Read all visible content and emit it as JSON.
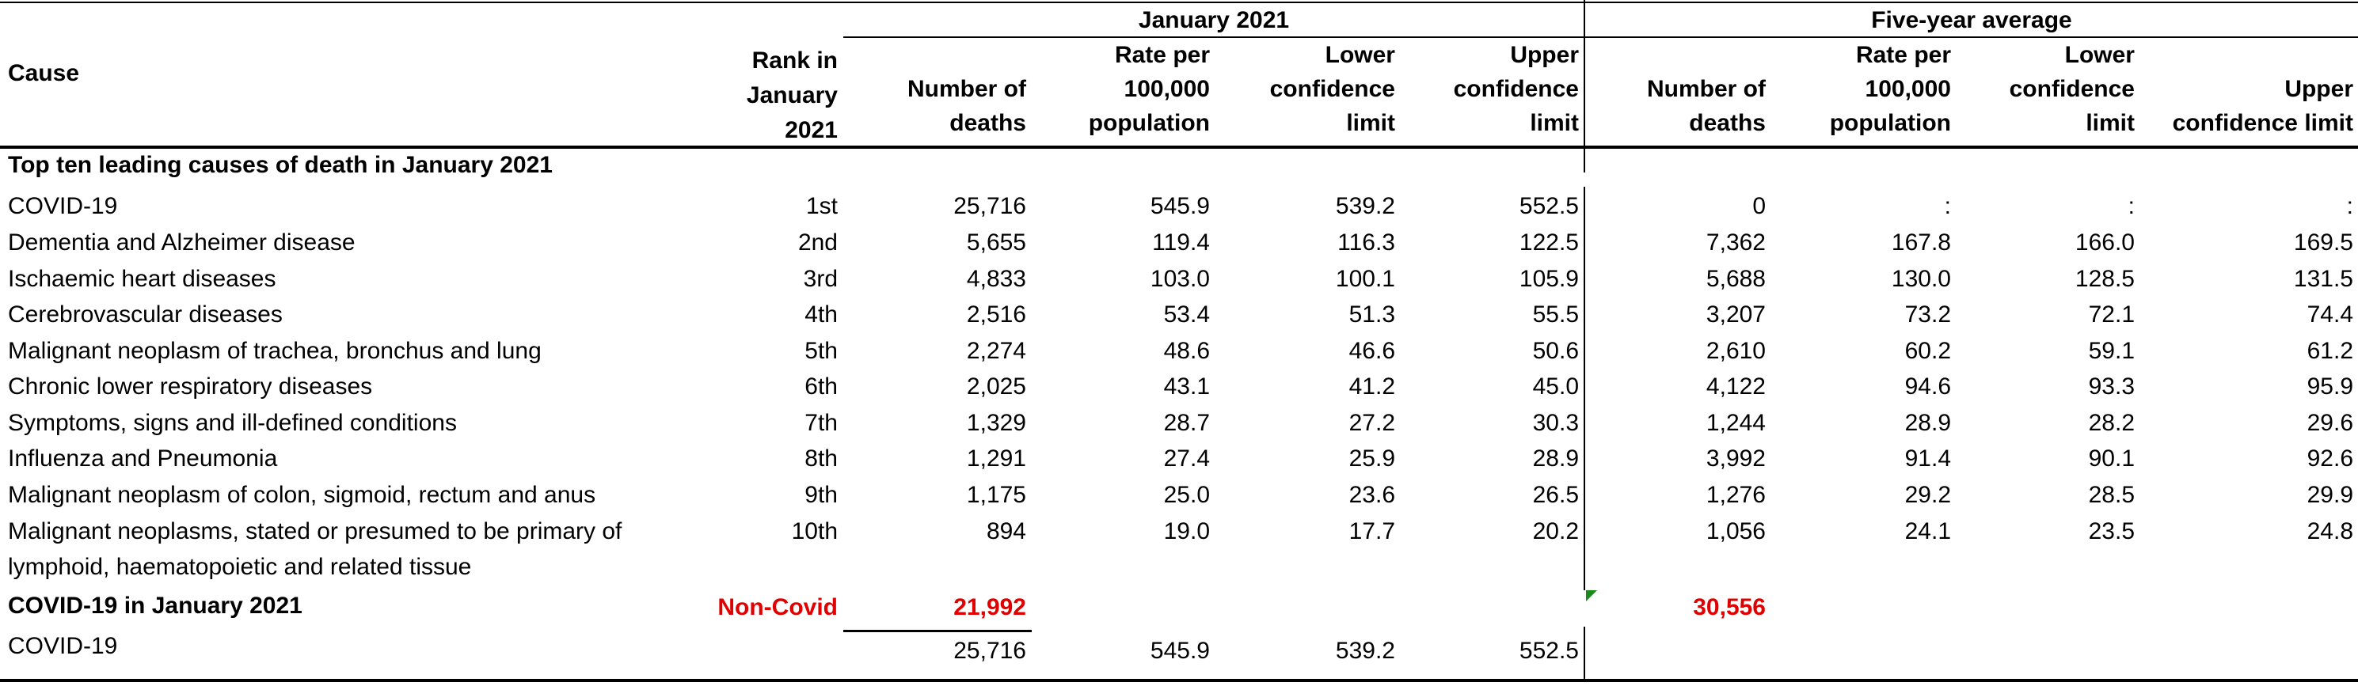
{
  "header": {
    "cause": "Cause",
    "rank_lines": [
      "Rank in",
      "January",
      "2021"
    ],
    "group_jan": "January 2021",
    "group_five": "Five-year average",
    "jan_cols": [
      [
        "Number of",
        "deaths"
      ],
      [
        "Rate per",
        "100,000",
        "population"
      ],
      [
        "Lower",
        "confidence",
        "limit"
      ],
      [
        "Upper",
        "confidence",
        "limit"
      ]
    ],
    "five_cols": [
      [
        "Number of",
        "deaths"
      ],
      [
        "Rate per",
        "100,000",
        "population"
      ],
      [
        "Lower",
        "confidence",
        "limit"
      ],
      [
        "Upper",
        "confidence limit"
      ]
    ]
  },
  "section_title": "Top ten leading causes of death in January 2021",
  "rows": [
    {
      "cause": [
        "COVID-19"
      ],
      "rank": "1st",
      "jan": [
        "25,716",
        "545.9",
        "539.2",
        "552.5"
      ],
      "five": [
        "0",
        ":",
        ":",
        ":"
      ]
    },
    {
      "cause": [
        "Dementia and Alzheimer disease"
      ],
      "rank": "2nd",
      "jan": [
        "5,655",
        "119.4",
        "116.3",
        "122.5"
      ],
      "five": [
        "7,362",
        "167.8",
        "166.0",
        "169.5"
      ]
    },
    {
      "cause": [
        "Ischaemic heart diseases"
      ],
      "rank": "3rd",
      "jan": [
        "4,833",
        "103.0",
        "100.1",
        "105.9"
      ],
      "five": [
        "5,688",
        "130.0",
        "128.5",
        "131.5"
      ]
    },
    {
      "cause": [
        "Cerebrovascular diseases"
      ],
      "rank": "4th",
      "jan": [
        "2,516",
        "53.4",
        "51.3",
        "55.5"
      ],
      "five": [
        "3,207",
        "73.2",
        "72.1",
        "74.4"
      ]
    },
    {
      "cause": [
        "Malignant neoplasm of trachea, bronchus and lung"
      ],
      "rank": "5th",
      "jan": [
        "2,274",
        "48.6",
        "46.6",
        "50.6"
      ],
      "five": [
        "2,610",
        "60.2",
        "59.1",
        "61.2"
      ]
    },
    {
      "cause": [
        "Chronic lower respiratory diseases"
      ],
      "rank": "6th",
      "jan": [
        "2,025",
        "43.1",
        "41.2",
        "45.0"
      ],
      "five": [
        "4,122",
        "94.6",
        "93.3",
        "95.9"
      ]
    },
    {
      "cause": [
        "Symptoms, signs and ill-defined conditions"
      ],
      "rank": "7th",
      "jan": [
        "1,329",
        "28.7",
        "27.2",
        "30.3"
      ],
      "five": [
        "1,244",
        "28.9",
        "28.2",
        "29.6"
      ]
    },
    {
      "cause": [
        "Influenza and Pneumonia"
      ],
      "rank": "8th",
      "jan": [
        "1,291",
        "27.4",
        "25.9",
        "28.9"
      ],
      "five": [
        "3,992",
        "91.4",
        "90.1",
        "92.6"
      ]
    },
    {
      "cause": [
        "Malignant neoplasm of colon, sigmoid, rectum and anus"
      ],
      "rank": "9th",
      "jan": [
        "1,175",
        "25.0",
        "23.6",
        "26.5"
      ],
      "five": [
        "1,276",
        "29.2",
        "28.5",
        "29.9"
      ]
    },
    {
      "cause": [
        "Malignant neoplasms, stated or presumed to be primary of",
        "lymphoid, haematopoietic and related tissue"
      ],
      "rank": "10th",
      "jan": [
        "894",
        "19.0",
        "17.7",
        "20.2"
      ],
      "five": [
        "1,056",
        "24.1",
        "23.5",
        "24.8"
      ]
    }
  ],
  "covid_section": {
    "title": "COVID-19 in January 2021",
    "non_covid_label": "Non-Covid",
    "non_covid_jan": "21,992",
    "non_covid_five": "30,556",
    "row": {
      "cause": "COVID-19",
      "jan": [
        "25,716",
        "545.9",
        "539.2",
        "552.5"
      ]
    }
  },
  "colors": {
    "highlight": "#e00000",
    "comment_marker": "#1a8a1a"
  }
}
